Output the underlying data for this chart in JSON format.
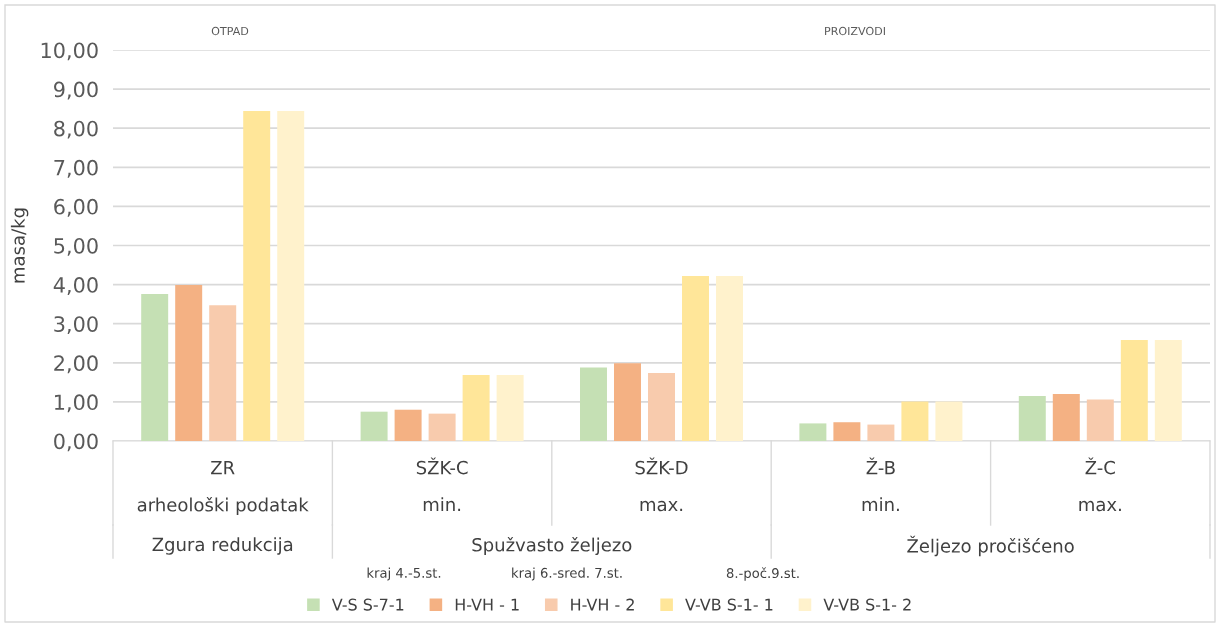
{
  "chart_data": {
    "type": "bar",
    "ylabel": "masa/kg",
    "categories": [
      "ZR",
      "SŽK-C",
      "SŽK-D",
      "Ž-B",
      "Ž-C"
    ],
    "series": [
      {
        "name": "V-S S-7-1",
        "color": "#c5e0b4",
        "values": [
          3.76,
          0.75,
          1.88,
          0.45,
          1.15
        ]
      },
      {
        "name": "H-VH - 1",
        "color": "#f4b183",
        "values": [
          3.99,
          0.8,
          1.99,
          0.48,
          1.2
        ]
      },
      {
        "name": "H-VH - 2",
        "color": "#f8cbad",
        "values": [
          3.47,
          0.7,
          1.74,
          0.42,
          1.06
        ]
      },
      {
        "name": "V-VB S-1- 1",
        "color": "#ffe699",
        "values": [
          8.44,
          1.69,
          4.22,
          1.01,
          2.58
        ]
      },
      {
        "name": "V-VB S-1- 2",
        "color": "#fff2cc",
        "values": [
          8.44,
          1.69,
          4.22,
          1.01,
          2.58
        ]
      }
    ],
    "ylim": [
      0,
      10
    ],
    "yticks": [
      {
        "value": 0,
        "label": "0,00"
      },
      {
        "value": 1,
        "label": "1,00"
      },
      {
        "value": 2,
        "label": "2,00"
      },
      {
        "value": 3,
        "label": "3,00"
      },
      {
        "value": 4,
        "label": "4,00"
      },
      {
        "value": 5,
        "label": "5,00"
      },
      {
        "value": 6,
        "label": "6,00"
      },
      {
        "value": 7,
        "label": "7,00"
      },
      {
        "value": 8,
        "label": "8,00"
      },
      {
        "value": 9,
        "label": "9,00"
      },
      {
        "value": 10,
        "label": "10,00"
      }
    ],
    "grid": "y",
    "legend": "bottom",
    "annotations": [
      "arheološki podatak",
      "min.",
      "max.",
      "min.",
      "max.",
      "Zgura redukcija",
      "Spužvasto željezo",
      "Željezo pročišćeno",
      "OTPAD",
      "PROIZVODI",
      "kraj 4.-5.st.",
      "kraj 6.-sred. 7.st.",
      "8.-poč.9.st."
    ]
  }
}
